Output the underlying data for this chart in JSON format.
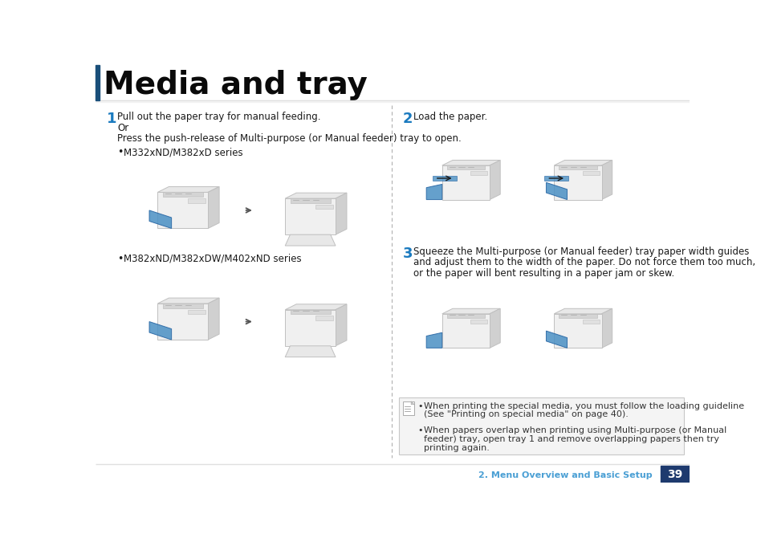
{
  "title": "Media and tray",
  "title_color": "#0a0a0a",
  "title_bar_color": "#1a4f7a",
  "step1_num": "1",
  "step1_num_color": "#1a7abf",
  "step1_text1": "Pull out the paper tray for manual feeding.",
  "step1_text2": "Or",
  "step1_text3": "Press the push-release of Multi-purpose (or Manual feeder) tray to open.",
  "step1_bullet1": "M332xND/M382xD series",
  "step1_bullet2": "M382xND/M382xDW/M402xND series",
  "step2_num": "2",
  "step2_num_color": "#1a7abf",
  "step2_text": "Load the paper.",
  "step3_num": "3",
  "step3_num_color": "#1a7abf",
  "step3_text1": "Squeeze the Multi-purpose (or Manual feeder) tray paper width guides",
  "step3_text2": "and adjust them to the width of the paper. Do not force them too much,",
  "step3_text3": "or the paper will bent resulting in a paper jam or skew.",
  "note_text1a": "When printing the special media, you must follow the loading guideline",
  "note_text1b": "(See \"Printing on special media\" on page 40).",
  "note_text2a": "When papers overlap when printing using Multi-purpose (or Manual",
  "note_text2b": "feeder) tray, open tray 1 and remove overlapping papers then try",
  "note_text2c": "printing again.",
  "footer_text": "2. Menu Overview and Basic Setup",
  "footer_page": "39",
  "footer_bg": "#1e3a6e",
  "footer_text_color": "#4a9fd4",
  "footer_page_color": "#ffffff",
  "bg_color": "#ffffff",
  "dashed_line_color": "#b0b0b0",
  "note_bg": "#f4f4f4",
  "note_border": "#c8c8c8",
  "printer_edge": "#c0c0c0",
  "printer_face": "#f0f0f0",
  "printer_dark": "#d8d8d8",
  "tray_color": "#4a90c4",
  "arrow_color": "#555555",
  "text_color": "#1a1a1a"
}
